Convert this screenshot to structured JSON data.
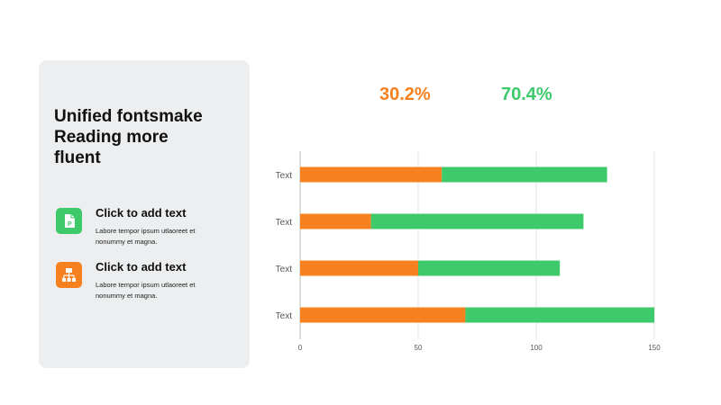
{
  "colors": {
    "orange": "#f7801f",
    "green": "#3ec96a",
    "panel": "#eceeef"
  },
  "panel": {
    "title_lines": [
      "Unified fontsmake",
      "Reading more",
      "fluent"
    ],
    "items": [
      {
        "icon": "document-icon",
        "color": "#3ec96a",
        "heading": "Click to add text",
        "desc_lines": [
          "Labore tempor ipsum  utlaoreet et",
          "nonummy  et magna."
        ]
      },
      {
        "icon": "hierarchy-icon",
        "color": "#f7801f",
        "heading": "Click to add text",
        "desc_lines": [
          "Labore tempor ipsum  utlaoreet et",
          "nonummy  et magna."
        ]
      }
    ]
  },
  "percentages": {
    "orange": "30.2%",
    "green": "70.4%"
  },
  "chart_data": {
    "type": "bar",
    "orientation": "horizontal",
    "stacked": true,
    "categories": [
      "Text",
      "Text",
      "Text",
      "Text"
    ],
    "series": [
      {
        "values": [
          60,
          30,
          50,
          70
        ],
        "color": "#f7801f"
      },
      {
        "values": [
          70,
          90,
          60,
          80
        ],
        "color": "#3ec96a"
      }
    ],
    "xlim": [
      0,
      150
    ],
    "xticks": [
      0,
      50,
      100,
      150
    ],
    "grid": true,
    "legend": "none"
  }
}
